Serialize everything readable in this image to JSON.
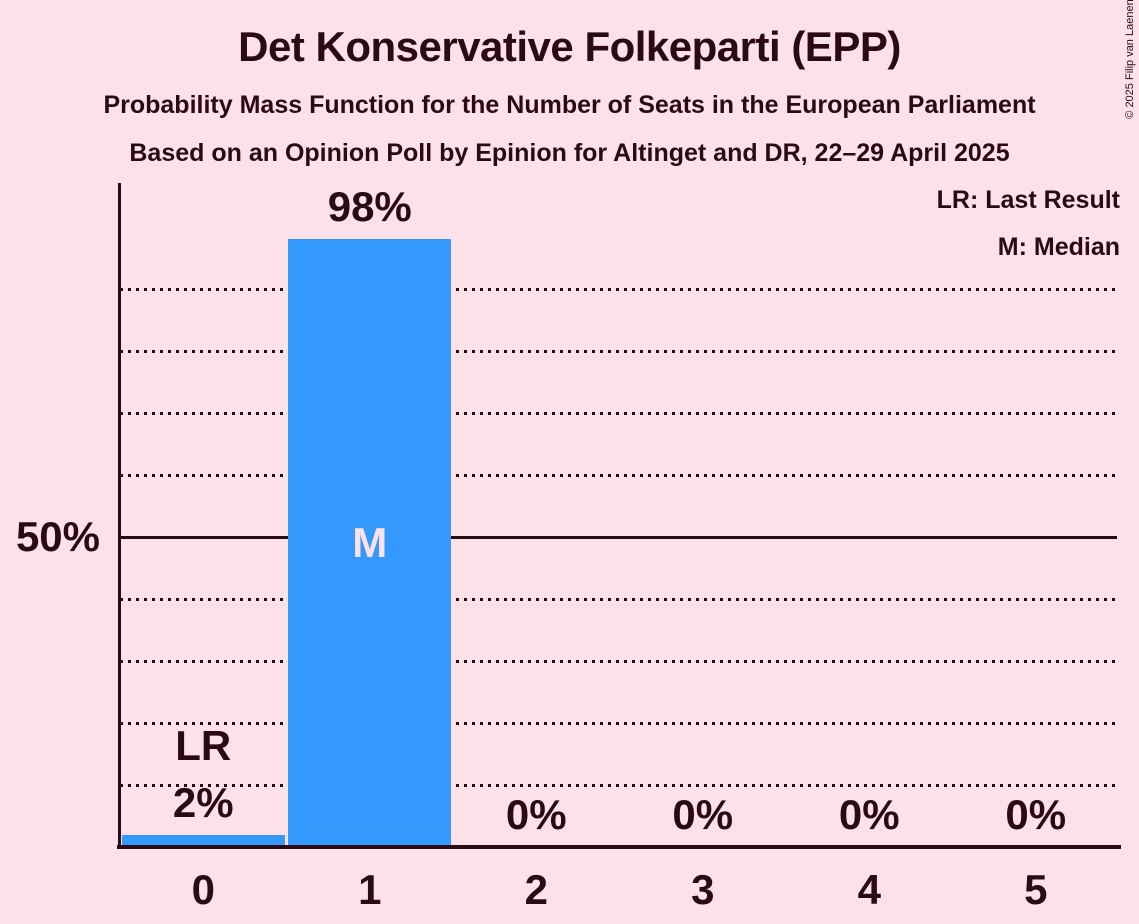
{
  "title": "Det Konservative Folkeparti (EPP)",
  "subtitle1": "Probability Mass Function for the Number of Seats in the European Parliament",
  "subtitle2": "Based on an Opinion Poll by Epinion for Altinget and DR, 22–29 April 2025",
  "legend": {
    "lr": "LR: Last Result",
    "m": "M: Median"
  },
  "copyright": "© 2025 Filip van Laenen",
  "colors": {
    "background": "#FDE1E8",
    "bar": "#3399FC",
    "text": "#2B0A14",
    "label_on_bar": "#FDE1E8"
  },
  "chart_data": {
    "type": "bar",
    "title": "Det Konservative Folkeparti (EPP)",
    "xlabel": "",
    "ylabel": "",
    "categories": [
      "0",
      "1",
      "2",
      "3",
      "4",
      "5"
    ],
    "values": [
      2,
      98,
      0,
      0,
      0,
      0
    ],
    "bar_labels": [
      "2%",
      "98%",
      "0%",
      "0%",
      "0%",
      "0%"
    ],
    "annotations": [
      {
        "category": "0",
        "label": "LR",
        "meaning": "Last Result",
        "position": "above-bar-label"
      },
      {
        "category": "1",
        "label": "M",
        "meaning": "Median",
        "position": "inside-bar"
      }
    ],
    "ylim": [
      0,
      100
    ],
    "ytick_labels": [
      {
        "pct": 50,
        "label": "50%"
      }
    ],
    "grid": {
      "interval_pct": 10,
      "solid_at_pct": 50,
      "dotted_pcts": [
        10,
        20,
        30,
        40,
        60,
        70,
        80,
        90
      ],
      "style": "dotted"
    },
    "legend_position": "top-right"
  }
}
